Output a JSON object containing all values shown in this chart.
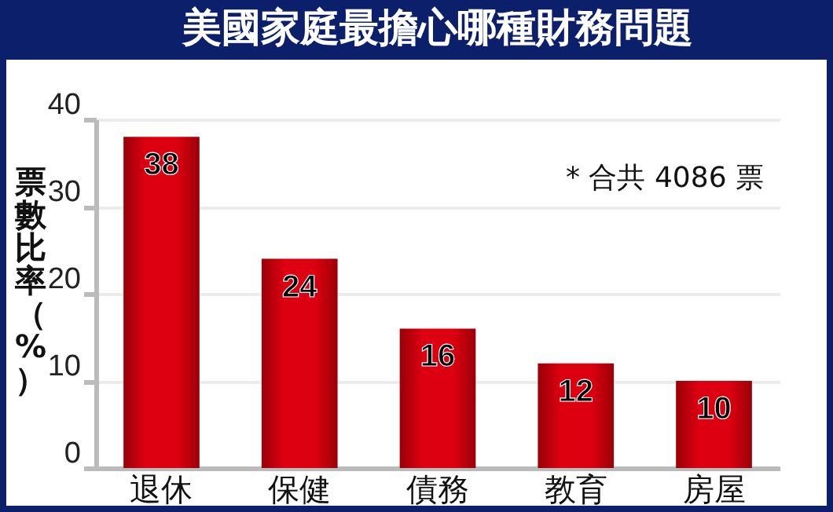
{
  "chart_data": {
    "type": "bar",
    "title": "美國家庭最擔心哪種財務問題",
    "ylabel": "票數比率（%）",
    "categories": [
      "退休",
      "保健",
      "債務",
      "教育",
      "房屋"
    ],
    "values": [
      38,
      24,
      16,
      12,
      10
    ],
    "color": "#dd0010",
    "ylim": [
      0,
      40
    ],
    "yticks": [
      0,
      10,
      20,
      30,
      40
    ],
    "grid": "y",
    "data_labels": true,
    "annotations": [
      "* 合共 4086 票"
    ]
  }
}
